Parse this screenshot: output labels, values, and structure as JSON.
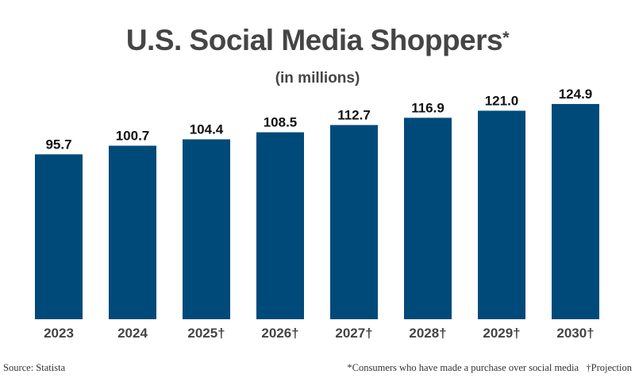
{
  "chart_data": {
    "type": "bar",
    "title": "U.S. Social Media Shoppers",
    "title_marker": "*",
    "subtitle": "(in millions)",
    "categories": [
      "2023",
      "2024",
      "2025†",
      "2026†",
      "2027†",
      "2028†",
      "2029†",
      "2030†"
    ],
    "values": [
      95.7,
      100.7,
      104.4,
      108.5,
      112.7,
      116.9,
      121.0,
      124.9
    ],
    "value_labels": [
      "95.7",
      "100.7",
      "104.4",
      "108.5",
      "112.7",
      "116.9",
      "121.0",
      "124.9"
    ],
    "xlabel": "",
    "ylabel": "",
    "ylim": [
      0,
      125
    ],
    "grid": false,
    "bar_color": "#004a7a"
  },
  "footer": {
    "source": "Source: Statista",
    "note": "*Consumers who have made a purchase over social media   †Projection"
  }
}
